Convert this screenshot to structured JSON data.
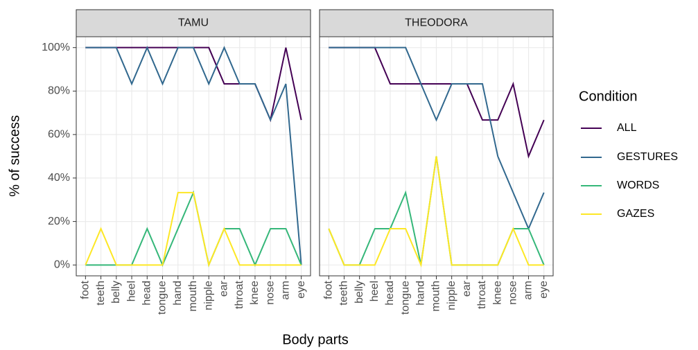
{
  "chart_data": {
    "type": "line",
    "categories": [
      "foot",
      "teeth",
      "belly",
      "heel",
      "head",
      "tongue",
      "hand",
      "mouth",
      "nipple",
      "ear",
      "throat",
      "knee",
      "nose",
      "arm",
      "eye"
    ],
    "ylim": [
      -5,
      105
    ],
    "yticks": [
      {
        "value": 0,
        "label": "0%"
      },
      {
        "value": 20,
        "label": "20%"
      },
      {
        "value": 40,
        "label": "40%"
      },
      {
        "value": 60,
        "label": "60%"
      },
      {
        "value": 80,
        "label": "80%"
      },
      {
        "value": 100,
        "label": "100%"
      }
    ],
    "xlabel": "Body parts",
    "ylabel": "% of success",
    "legend_title": "Condition",
    "grid": true,
    "panels": [
      {
        "title": "TAMU",
        "series": [
          {
            "name": "ALL",
            "color": "#440154",
            "values": [
              100,
              100,
              100,
              100,
              100,
              100,
              100,
              100,
              100,
              83.3,
              83.3,
              83.3,
              66.7,
              100,
              66.7
            ]
          },
          {
            "name": "GESTURES",
            "color": "#31688e",
            "values": [
              100,
              100,
              100,
              83.3,
              100,
              83.3,
              100,
              100,
              83.3,
              100,
              83.3,
              83.3,
              66.7,
              83.3,
              0
            ]
          },
          {
            "name": "WORDS",
            "color": "#35b779",
            "values": [
              0,
              0,
              0,
              0,
              16.7,
              0,
              16.7,
              33.3,
              0,
              16.7,
              16.7,
              0,
              16.7,
              16.7,
              0
            ]
          },
          {
            "name": "GAZES",
            "color": "#fde725",
            "values": [
              0,
              16.7,
              0,
              0,
              0,
              0,
              33.3,
              33.3,
              0,
              16.7,
              0,
              0,
              0,
              0,
              0
            ]
          }
        ]
      },
      {
        "title": "THEODORA",
        "series": [
          {
            "name": "ALL",
            "color": "#440154",
            "values": [
              100,
              100,
              100,
              100,
              83.3,
              83.3,
              83.3,
              83.3,
              83.3,
              83.3,
              66.7,
              66.7,
              83.3,
              50,
              66.7
            ]
          },
          {
            "name": "GESTURES",
            "color": "#31688e",
            "values": [
              100,
              100,
              100,
              100,
              100,
              100,
              83.3,
              66.7,
              83.3,
              83.3,
              83.3,
              50,
              33.3,
              16.7,
              33.3
            ]
          },
          {
            "name": "WORDS",
            "color": "#35b779",
            "values": [
              16.7,
              0,
              0,
              16.7,
              16.7,
              33.3,
              0,
              50,
              0,
              0,
              0,
              0,
              16.7,
              16.7,
              0
            ]
          },
          {
            "name": "GAZES",
            "color": "#fde725",
            "values": [
              16.7,
              0,
              0,
              0,
              16.7,
              16.7,
              0,
              50,
              0,
              0,
              0,
              0,
              16.7,
              0,
              0
            ]
          }
        ]
      }
    ]
  }
}
